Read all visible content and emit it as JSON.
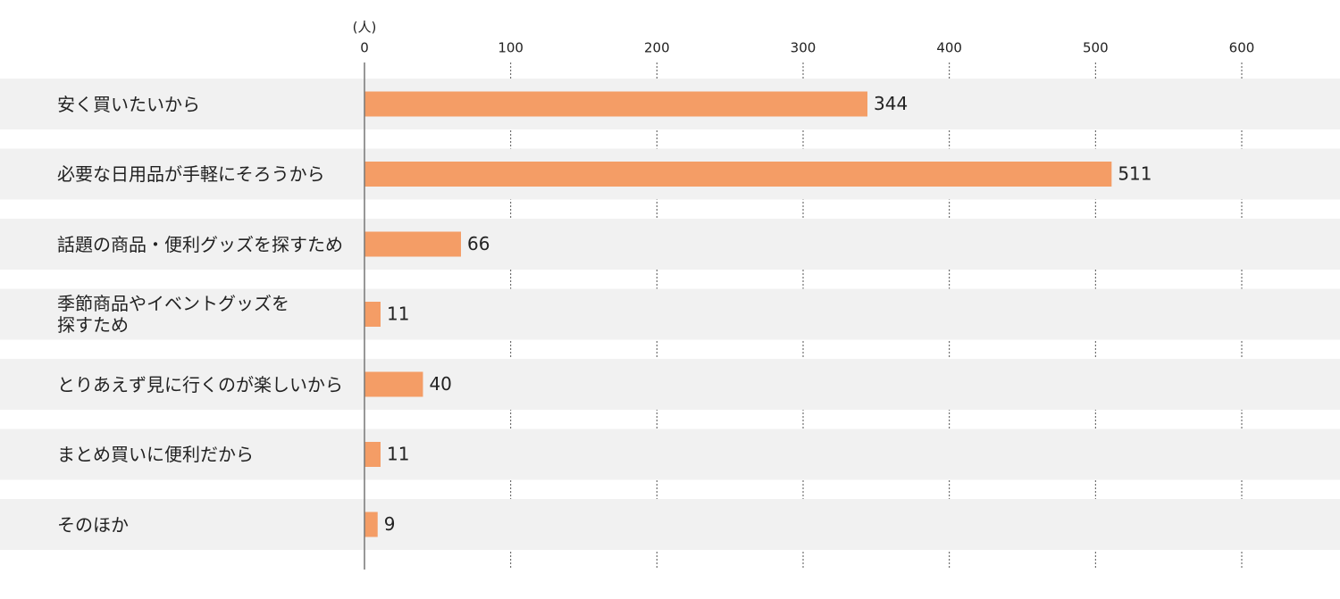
{
  "chart_data": {
    "type": "bar",
    "orientation": "horizontal",
    "x_unit": "(人)",
    "categories": [
      "安く買いたいから",
      "必要な日用品が手軽にそろうから",
      "話題の商品・便利グッズを探すため",
      "季節商品やイベントグッズを\n探すため",
      "とりあえず見に行くのが楽しいから",
      "まとめ買いに便利だから",
      "そのほか"
    ],
    "values": [
      344,
      511,
      66,
      11,
      40,
      11,
      9
    ],
    "color": "#f49d66",
    "xlim": [
      0,
      600
    ],
    "xticks": [
      0,
      100,
      200,
      300,
      400,
      500,
      600
    ],
    "grid": true
  }
}
